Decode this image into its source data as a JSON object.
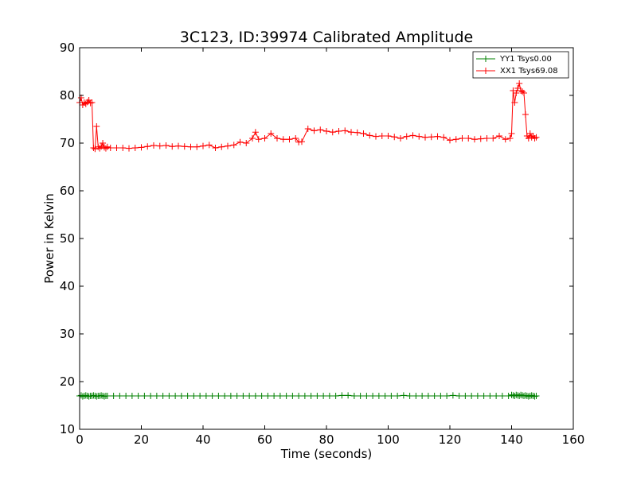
{
  "chart_data": {
    "type": "line",
    "title": "3C123, ID:39974 Calibrated Amplitude",
    "xlabel": "Time (seconds)",
    "ylabel": "Power in Kelvin",
    "xlim": [
      0,
      160
    ],
    "ylim": [
      10,
      90
    ],
    "xticks": [
      0,
      20,
      40,
      60,
      80,
      100,
      120,
      140,
      160
    ],
    "yticks": [
      10,
      20,
      30,
      40,
      50,
      60,
      70,
      80,
      90
    ],
    "grid": false,
    "legend_position": "top-right",
    "marker": "plus",
    "series": [
      {
        "name": "YY1 Tsys0.00",
        "color": "#008000",
        "x": [
          0,
          0.5,
          1,
          1.5,
          2,
          2.5,
          3,
          3.5,
          4,
          4.5,
          5,
          5.5,
          6,
          6.5,
          7,
          7.5,
          8,
          8.5,
          9,
          11,
          13,
          15,
          17,
          19,
          21,
          23,
          25,
          27,
          29,
          31,
          33,
          35,
          37,
          39,
          41,
          43,
          45,
          47,
          49,
          51,
          53,
          55,
          57,
          59,
          61,
          63,
          65,
          67,
          69,
          71,
          73,
          75,
          77,
          79,
          81,
          83,
          85,
          87,
          89,
          91,
          93,
          95,
          97,
          99,
          101,
          103,
          105,
          107,
          109,
          111,
          113,
          115,
          117,
          119,
          121,
          123,
          125,
          127,
          129,
          131,
          133,
          135,
          137,
          139,
          140,
          140.5,
          141,
          141.5,
          142,
          142.5,
          143,
          143.5,
          144,
          144.5,
          145,
          145.5,
          146,
          146.5,
          147,
          147.5,
          148
        ],
        "y": [
          17.0,
          17.1,
          16.9,
          17.0,
          17.1,
          17.0,
          16.9,
          17.0,
          17.0,
          17.1,
          17.0,
          16.9,
          17.0,
          17.0,
          17.1,
          17.0,
          16.9,
          17.0,
          17.0,
          17.0,
          17.0,
          17.0,
          17.0,
          17.0,
          17.0,
          17.0,
          17.0,
          17.0,
          17.0,
          17.0,
          17.0,
          17.0,
          17.0,
          17.0,
          17.0,
          17.0,
          17.0,
          17.0,
          17.0,
          17.0,
          17.0,
          17.0,
          17.0,
          17.0,
          17.0,
          17.0,
          17.0,
          17.0,
          17.0,
          17.0,
          17.0,
          17.0,
          17.0,
          17.0,
          17.0,
          17.0,
          17.1,
          17.1,
          17.0,
          17.0,
          17.0,
          17.0,
          17.0,
          17.0,
          17.0,
          17.0,
          17.1,
          17.0,
          17.0,
          17.0,
          17.0,
          17.0,
          17.0,
          17.0,
          17.1,
          17.0,
          17.0,
          17.0,
          17.0,
          17.0,
          17.0,
          17.0,
          17.0,
          17.0,
          17.2,
          17.1,
          17.0,
          17.2,
          17.1,
          17.0,
          17.2,
          17.1,
          17.0,
          17.1,
          17.0,
          16.9,
          17.0,
          17.1,
          17.0,
          16.9,
          17.0
        ]
      },
      {
        "name": "XX1 Tsys69.08",
        "color": "#ff0000",
        "x": [
          0,
          0.5,
          1,
          1.5,
          2,
          2.5,
          3,
          3.5,
          4,
          4.5,
          5,
          5.5,
          6,
          6.5,
          7,
          7.5,
          8,
          8.5,
          9,
          10,
          12,
          14,
          16,
          18,
          20,
          22,
          24,
          26,
          28,
          30,
          32,
          34,
          36,
          38,
          40,
          42,
          44,
          46,
          48,
          50,
          52,
          54,
          56,
          57,
          58,
          60,
          62,
          64,
          66,
          68,
          70,
          71,
          72,
          74,
          76,
          78,
          80,
          82,
          84,
          86,
          88,
          90,
          92,
          94,
          96,
          98,
          100,
          102,
          104,
          106,
          108,
          110,
          112,
          114,
          116,
          118,
          120,
          122,
          124,
          126,
          128,
          130,
          132,
          134,
          136,
          138,
          139.5,
          140,
          140.5,
          141,
          141.5,
          142,
          142.5,
          143,
          143.5,
          144,
          144.5,
          145,
          145.5,
          146,
          146.5,
          147,
          147.5,
          148
        ],
        "y": [
          78.5,
          79.5,
          78.0,
          78.5,
          78.2,
          78.6,
          79.0,
          78.4,
          78.5,
          69.0,
          68.8,
          73.5,
          69.2,
          68.9,
          69.3,
          70.0,
          69.1,
          68.9,
          69.2,
          69.0,
          69.0,
          69.0,
          68.9,
          69.0,
          69.1,
          69.3,
          69.5,
          69.4,
          69.5,
          69.3,
          69.4,
          69.3,
          69.2,
          69.2,
          69.4,
          69.6,
          69.0,
          69.2,
          69.4,
          69.6,
          70.2,
          70.0,
          71.0,
          72.3,
          70.8,
          71.0,
          72.0,
          71.0,
          70.8,
          70.8,
          71.0,
          70.2,
          70.3,
          73.0,
          72.6,
          72.8,
          72.5,
          72.3,
          72.5,
          72.6,
          72.3,
          72.2,
          72.0,
          71.6,
          71.4,
          71.5,
          71.5,
          71.3,
          71.0,
          71.4,
          71.6,
          71.4,
          71.2,
          71.3,
          71.4,
          71.2,
          70.6,
          70.8,
          71.0,
          71.0,
          70.8,
          70.9,
          71.0,
          71.0,
          71.5,
          70.8,
          71.0,
          72.0,
          81.0,
          78.5,
          80.5,
          81.5,
          82.5,
          81.0,
          80.8,
          80.5,
          76.0,
          71.5,
          71.0,
          72.0,
          71.2,
          71.5,
          71.0,
          71.2
        ]
      }
    ]
  }
}
